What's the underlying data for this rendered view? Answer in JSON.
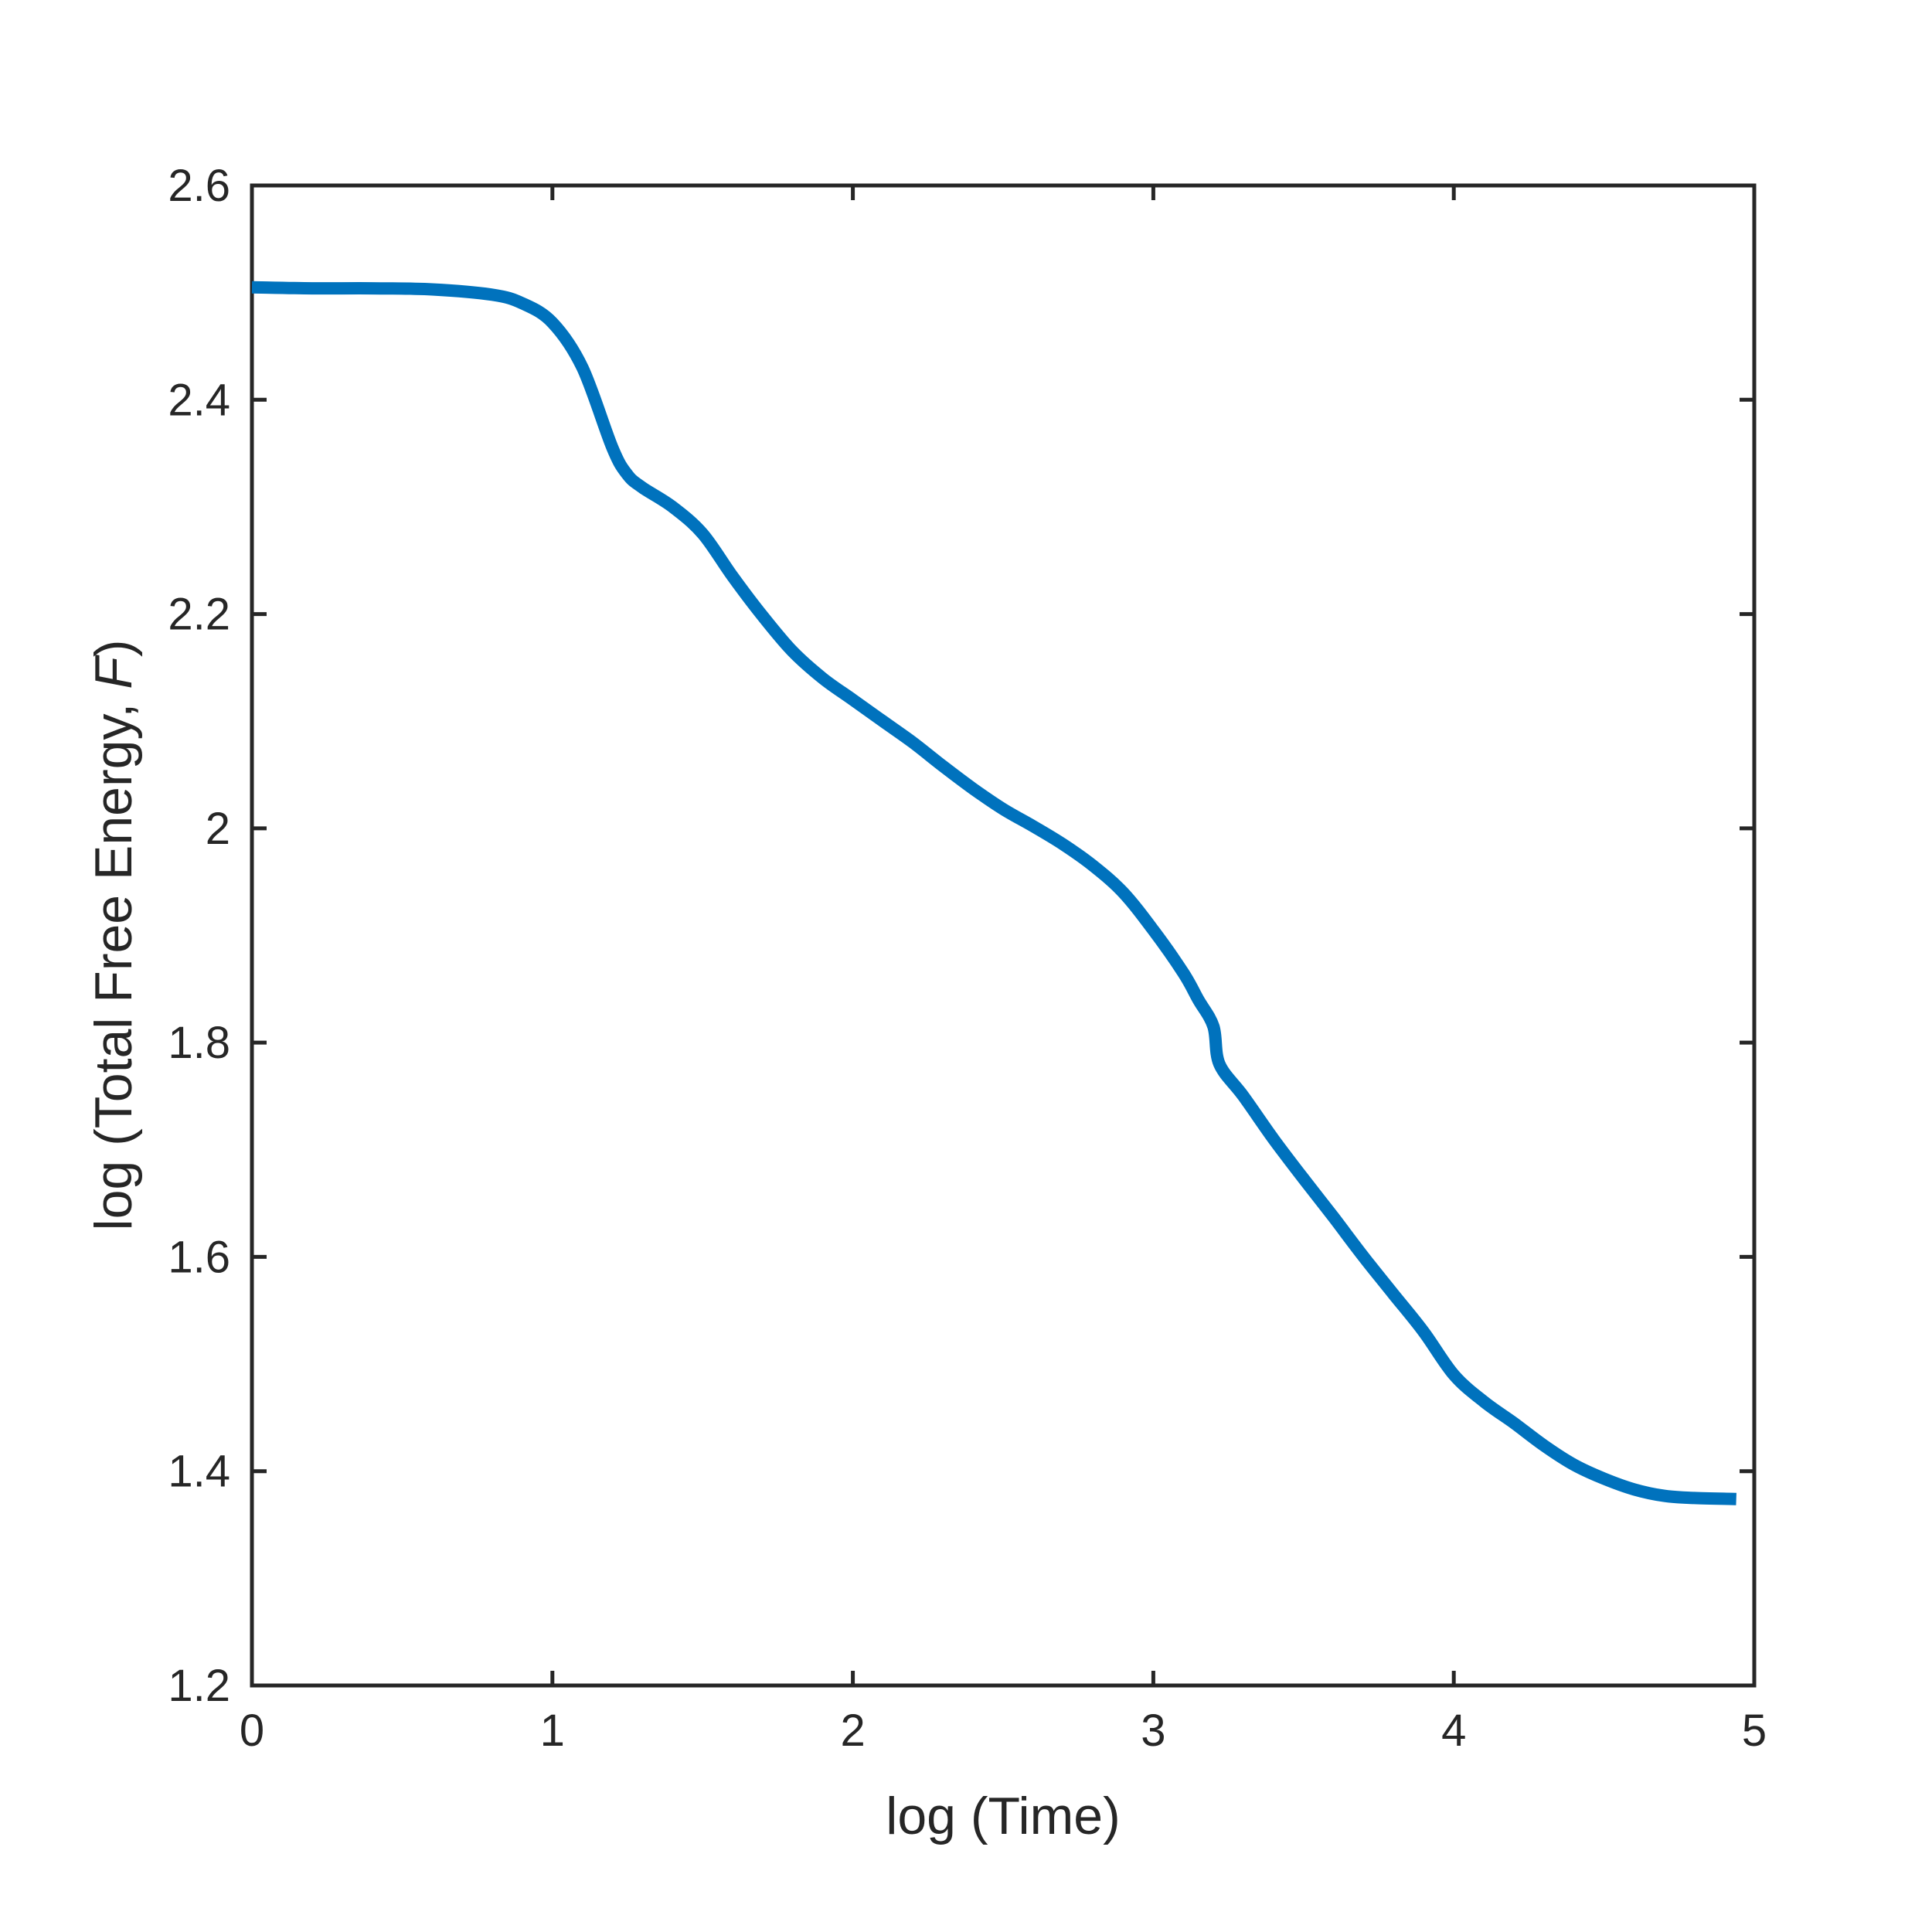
{
  "chart_data": {
    "type": "line",
    "xlabel": "log (Time)",
    "ylabel_prefix": "log (Total Free Energy,",
    "ylabel_symbol": "F",
    "ylabel_suffix": ")",
    "xlim": [
      0,
      5
    ],
    "ylim": [
      1.2,
      2.6
    ],
    "x_ticks": [
      "0",
      "1",
      "2",
      "3",
      "4",
      "5"
    ],
    "y_ticks": [
      "1.2",
      "1.4",
      "1.6",
      "1.8",
      "2",
      "2.2",
      "2.4",
      "2.6"
    ],
    "grid": false,
    "series": [
      {
        "color": "#0072BD",
        "x": [
          0.0,
          0.2,
          0.4,
          0.6,
          0.8,
          0.9,
          1.0,
          1.1,
          1.2,
          1.25,
          1.3,
          1.4,
          1.5,
          1.6,
          1.7,
          1.8,
          1.9,
          2.0,
          2.1,
          2.2,
          2.3,
          2.4,
          2.5,
          2.6,
          2.7,
          2.8,
          2.9,
          3.0,
          3.1,
          3.15,
          3.2,
          3.22,
          3.3,
          3.4,
          3.5,
          3.6,
          3.7,
          3.8,
          3.9,
          4.0,
          4.1,
          4.2,
          4.3,
          4.4,
          4.5,
          4.6,
          4.7,
          4.8,
          4.94
        ],
        "y": [
          2.505,
          2.504,
          2.504,
          2.503,
          2.498,
          2.49,
          2.472,
          2.43,
          2.355,
          2.33,
          2.318,
          2.3,
          2.275,
          2.235,
          2.198,
          2.165,
          2.14,
          2.12,
          2.1,
          2.08,
          2.058,
          2.037,
          2.018,
          2.002,
          1.985,
          1.965,
          1.94,
          1.905,
          1.865,
          1.84,
          1.815,
          1.78,
          1.75,
          1.71,
          1.673,
          1.637,
          1.6,
          1.565,
          1.53,
          1.49,
          1.465,
          1.445,
          1.424,
          1.406,
          1.393,
          1.383,
          1.377,
          1.375,
          1.374
        ]
      }
    ]
  }
}
